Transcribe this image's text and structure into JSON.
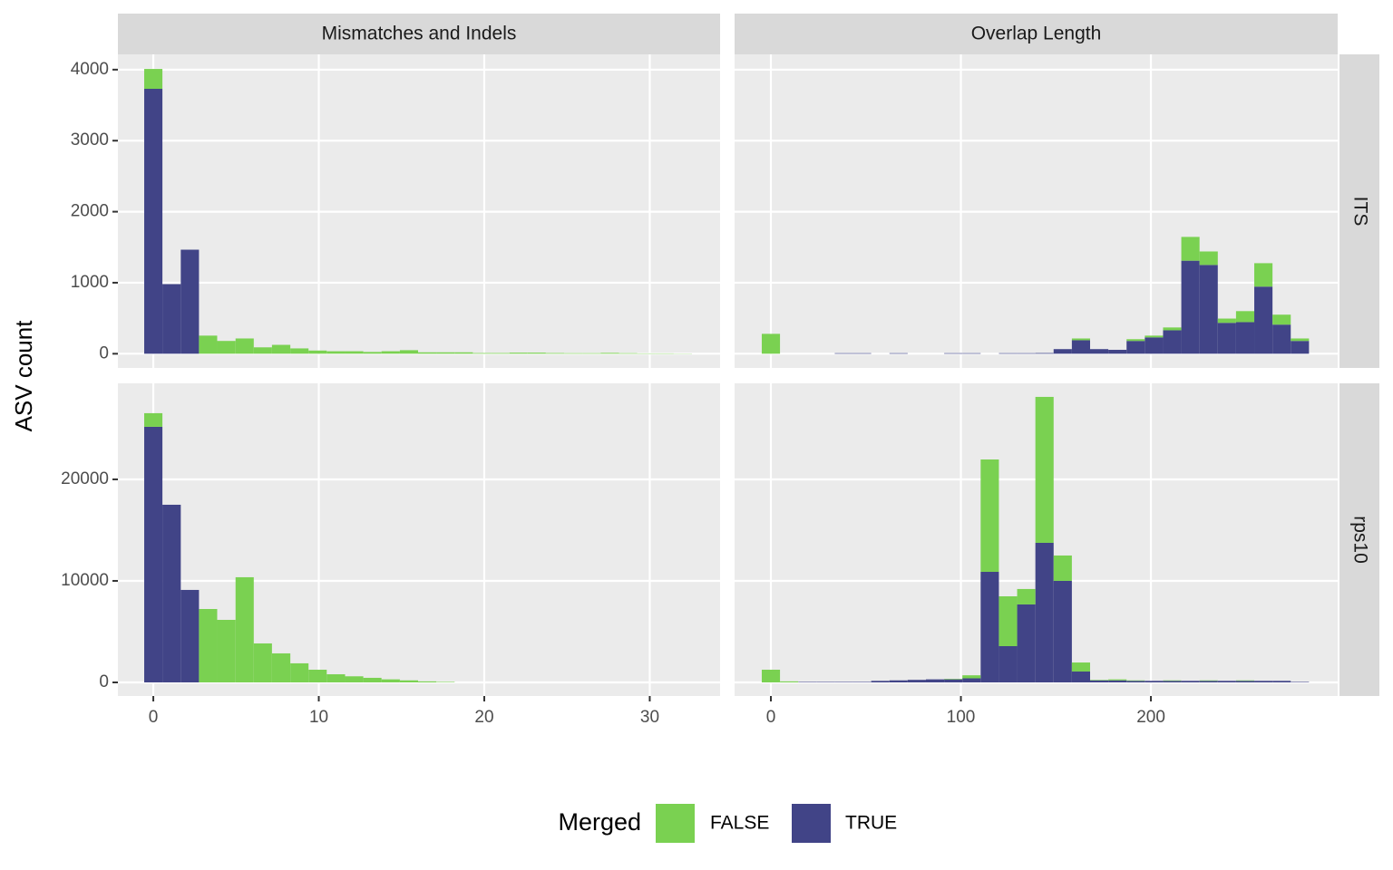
{
  "facets": {
    "columns": [
      "Mismatches and Indels",
      "Overlap Length"
    ],
    "rows": [
      "ITS",
      "rps10"
    ]
  },
  "y_label": "ASV count",
  "legend_title": "Merged",
  "chart_data": [
    {
      "type": "histogram",
      "bins": [
        -0.55,
        0.55,
        1.66,
        2.76,
        3.86,
        4.97,
        6.07,
        7.17,
        8.28,
        9.38,
        10.48,
        11.59,
        12.69,
        13.79,
        14.9,
        16.0,
        17.1,
        18.21,
        19.31,
        20.41,
        21.52,
        22.62,
        23.72,
        24.83,
        25.93,
        27.03,
        28.14,
        29.24,
        30.34,
        31.45,
        32.55
      ],
      "series": [
        {
          "name": "FALSE",
          "color": "#7AD151",
          "values": [
            280,
            0,
            0,
            255,
            180,
            215,
            90,
            125,
            75,
            45,
            35,
            35,
            25,
            35,
            50,
            20,
            20,
            20,
            10,
            10,
            15,
            15,
            10,
            8,
            8,
            12,
            8,
            5,
            5,
            3
          ]
        },
        {
          "name": "TRUE",
          "color": "#414487",
          "values": [
            3730,
            980,
            1465,
            0,
            0,
            0,
            0,
            0,
            0,
            0,
            0,
            0,
            0,
            0,
            0,
            0,
            0,
            0,
            0,
            0,
            0,
            0,
            0,
            0,
            0,
            0,
            0,
            0,
            0,
            0
          ]
        }
      ],
      "xlim": [
        -2.14,
        34.25
      ],
      "ylim": [
        -200,
        4215
      ],
      "xticks": [
        0,
        10,
        20,
        30
      ],
      "yticks": [
        0,
        1000,
        2000,
        3000,
        4000
      ],
      "grid": true,
      "stacked": true
    },
    {
      "type": "histogram",
      "bins": [
        -4.8,
        4.8,
        14.4,
        24,
        33.6,
        43.2,
        52.8,
        62.4,
        72,
        81.6,
        91.2,
        100.8,
        110.4,
        120,
        129.6,
        139.2,
        148.8,
        158.4,
        168,
        177.6,
        187.2,
        196.8,
        206.4,
        216,
        225.6,
        235.2,
        244.8,
        254.4,
        264,
        273.6,
        283.2
      ],
      "series": [
        {
          "name": "FALSE",
          "color": "#7AD151",
          "values": [
            280,
            0,
            0,
            0,
            0,
            0,
            0,
            0,
            0,
            0,
            0,
            0,
            0,
            0,
            0,
            0,
            0,
            25,
            0,
            0,
            25,
            25,
            40,
            335,
            190,
            60,
            155,
            330,
            140,
            35
          ]
        },
        {
          "name": "TRUE",
          "color": "#414487",
          "values": [
            0,
            0,
            0,
            0,
            8,
            8,
            0,
            8,
            0,
            0,
            8,
            8,
            0,
            8,
            8,
            10,
            65,
            190,
            65,
            55,
            180,
            230,
            330,
            1310,
            1250,
            435,
            445,
            945,
            410,
            180
          ]
        }
      ],
      "xlim": [
        -19.1,
        298.3
      ],
      "ylim": [
        -200,
        4215
      ],
      "xticks": [
        0,
        100,
        200
      ],
      "yticks": [
        0,
        1000,
        2000,
        3000,
        4000
      ],
      "grid": true,
      "stacked": true
    },
    {
      "type": "histogram",
      "bins": [
        -0.55,
        0.55,
        1.66,
        2.76,
        3.86,
        4.97,
        6.07,
        7.17,
        8.28,
        9.38,
        10.48,
        11.59,
        12.69,
        13.79,
        14.9,
        16.0,
        17.1,
        18.21,
        19.31,
        20.41,
        21.52,
        22.62,
        23.72,
        24.83,
        25.93,
        27.03,
        28.14,
        29.24,
        30.34,
        31.45,
        32.55
      ],
      "series": [
        {
          "name": "FALSE",
          "color": "#7AD151",
          "values": [
            1340,
            0,
            0,
            7230,
            6160,
            10360,
            3840,
            2860,
            1880,
            1250,
            800,
            600,
            450,
            300,
            200,
            100,
            50,
            0,
            0,
            0,
            0,
            0,
            0,
            0,
            0,
            0,
            0,
            0,
            0,
            0
          ]
        },
        {
          "name": "TRUE",
          "color": "#414487",
          "values": [
            25180,
            17500,
            9110,
            0,
            0,
            0,
            0,
            0,
            0,
            0,
            0,
            0,
            0,
            0,
            0,
            0,
            0,
            0,
            0,
            0,
            0,
            0,
            0,
            0,
            0,
            0,
            0,
            0,
            0,
            0
          ]
        }
      ],
      "xlim": [
        -2.14,
        34.25
      ],
      "ylim": [
        -1340,
        29460
      ],
      "xticks": [
        0,
        10,
        20,
        30
      ],
      "yticks": [
        0,
        10000,
        20000
      ],
      "grid": true,
      "stacked": true
    },
    {
      "type": "histogram",
      "bins": [
        -4.8,
        4.8,
        14.4,
        24,
        33.6,
        43.2,
        52.8,
        62.4,
        72,
        81.6,
        91.2,
        100.8,
        110.4,
        120,
        129.6,
        139.2,
        148.8,
        158.4,
        168,
        177.6,
        187.2,
        196.8,
        206.4,
        216,
        225.6,
        235.2,
        244.8,
        254.4,
        264,
        273.6,
        283.2
      ],
      "series": [
        {
          "name": "FALSE",
          "color": "#7AD151",
          "values": [
            1250,
            100,
            0,
            0,
            0,
            0,
            0,
            0,
            0,
            0,
            50,
            300,
            11070,
            4910,
            1520,
            14375,
            2500,
            890,
            50,
            100,
            50,
            0,
            50,
            0,
            50,
            0,
            50,
            0,
            0,
            0
          ]
        },
        {
          "name": "TRUE",
          "color": "#414487",
          "values": [
            0,
            0,
            50,
            50,
            50,
            50,
            150,
            200,
            250,
            300,
            300,
            400,
            10890,
            3570,
            7680,
            13750,
            10000,
            1070,
            200,
            200,
            150,
            150,
            150,
            150,
            150,
            150,
            150,
            150,
            150,
            50
          ]
        }
      ],
      "xlim": [
        -19.1,
        298.3
      ],
      "ylim": [
        -1340,
        29460
      ],
      "xticks": [
        0,
        100,
        200
      ],
      "yticks": [
        0,
        10000,
        20000
      ],
      "grid": true,
      "stacked": true
    }
  ]
}
